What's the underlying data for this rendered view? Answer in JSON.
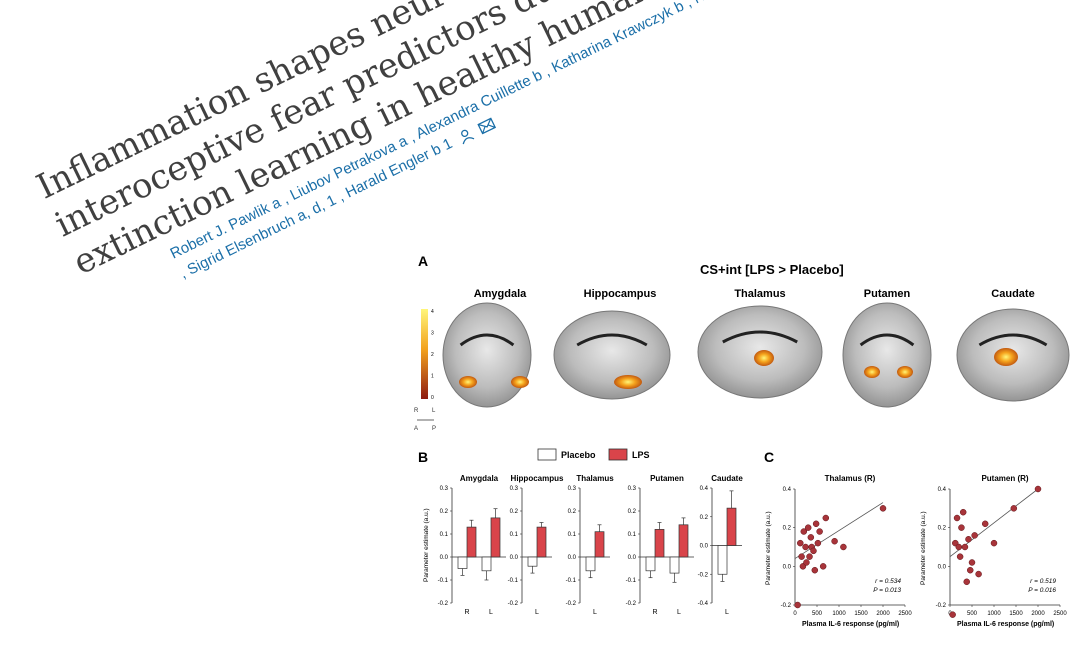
{
  "title": {
    "lines": [
      "Inflammation shapes neural processing of",
      "interoceptive fear predictors during",
      "extinction learning in healthy humans"
    ]
  },
  "authors": {
    "line1": "Robert J. Pawlik a , Liubov Petrakova a , Alexandra Cuillette b , Katharina Krawczyk b , Nina Theysohn c",
    "line2": ", Sigrid Elsenbruch a, d, 1 , Harald Engler b 1",
    "icons": [
      "person-icon",
      "mail-icon"
    ]
  },
  "figure": {
    "panel_a": {
      "letter": "A",
      "heading": "CS+int [LPS > Placebo]",
      "regions": [
        "Amygdala",
        "Hippocampus",
        "Thalamus",
        "Putamen",
        "Caudate"
      ],
      "colorbar_ticks": [
        "4",
        "3",
        "2",
        "1",
        "0"
      ],
      "orientation": {
        "r": "R",
        "l": "L",
        "a": "A",
        "p": "P"
      },
      "colors": {
        "high": "#fff67a",
        "mid": "#f2a11e",
        "low": "#8e1a10"
      }
    },
    "panel_b": {
      "letter": "B",
      "legend": [
        "Placebo",
        "LPS"
      ],
      "ylabel": "Parameter estimate (a.u.)"
    },
    "panel_c": {
      "letter": "C",
      "ylabel": "Parameter estimate (a.u.)",
      "xlabel": "Plasma IL-6 response (pg/ml)"
    }
  },
  "chart_data": [
    {
      "type": "bar",
      "title": "Amygdala",
      "categories": [
        "R",
        "L"
      ],
      "ylim": [
        -0.2,
        0.3
      ],
      "yticks": [
        "0.3",
        "0.2",
        "0.1",
        "0.0",
        "-0.1",
        "-0.2"
      ],
      "series": [
        {
          "name": "Placebo",
          "values": [
            -0.05,
            -0.06
          ],
          "err": [
            0.03,
            0.04
          ]
        },
        {
          "name": "LPS",
          "values": [
            0.13,
            0.17
          ],
          "err": [
            0.03,
            0.04
          ]
        }
      ]
    },
    {
      "type": "bar",
      "title": "Hippocampus",
      "categories": [
        "L"
      ],
      "ylim": [
        -0.2,
        0.3
      ],
      "yticks": [
        "0.3",
        "0.2",
        "0.1",
        "0.0",
        "-0.1",
        "-0.2"
      ],
      "series": [
        {
          "name": "Placebo",
          "values": [
            -0.04
          ],
          "err": [
            0.03
          ]
        },
        {
          "name": "LPS",
          "values": [
            0.13
          ],
          "err": [
            0.02
          ]
        }
      ]
    },
    {
      "type": "bar",
      "title": "Thalamus",
      "categories": [
        "L"
      ],
      "ylim": [
        -0.2,
        0.3
      ],
      "yticks": [
        "0.3",
        "0.2",
        "0.1",
        "0.0",
        "-0.1",
        "-0.2"
      ],
      "series": [
        {
          "name": "Placebo",
          "values": [
            -0.06
          ],
          "err": [
            0.03
          ]
        },
        {
          "name": "LPS",
          "values": [
            0.11
          ],
          "err": [
            0.03
          ]
        }
      ]
    },
    {
      "type": "bar",
      "title": "Putamen",
      "categories": [
        "R",
        "L"
      ],
      "ylim": [
        -0.2,
        0.3
      ],
      "yticks": [
        "0.3",
        "0.2",
        "0.1",
        "0.0",
        "-0.1",
        "-0.2"
      ],
      "series": [
        {
          "name": "Placebo",
          "values": [
            -0.06,
            -0.07
          ],
          "err": [
            0.03,
            0.04
          ]
        },
        {
          "name": "LPS",
          "values": [
            0.12,
            0.14
          ],
          "err": [
            0.03,
            0.03
          ]
        }
      ]
    },
    {
      "type": "bar",
      "title": "Caudate",
      "categories": [
        "L"
      ],
      "ylim": [
        -0.4,
        0.4
      ],
      "yticks": [
        "0.4",
        "0.2",
        "0.0",
        "-0.2",
        "-0.4"
      ],
      "series": [
        {
          "name": "Placebo",
          "values": [
            -0.2
          ],
          "err": [
            0.05
          ]
        },
        {
          "name": "LPS",
          "values": [
            0.26
          ],
          "err": [
            0.12
          ]
        }
      ]
    },
    {
      "type": "scatter",
      "title": "Thalamus (R)",
      "xlim": [
        0,
        2500
      ],
      "ylim": [
        -0.2,
        0.4
      ],
      "xticks": [
        "0",
        "500",
        "1000",
        "1500",
        "2000",
        "2500"
      ],
      "yticks": [
        "0.4",
        "0.2",
        "0.0",
        "-0.2"
      ],
      "x": [
        60,
        120,
        150,
        180,
        200,
        240,
        260,
        300,
        330,
        360,
        380,
        420,
        450,
        480,
        520,
        560,
        640,
        700,
        900,
        1100,
        2000
      ],
      "y": [
        -0.2,
        0.12,
        0.05,
        0.0,
        0.18,
        0.1,
        0.02,
        0.2,
        0.05,
        0.15,
        0.1,
        0.08,
        -0.02,
        0.22,
        0.12,
        0.18,
        0.0,
        0.25,
        0.13,
        0.1,
        0.3
      ],
      "fit": [
        [
          0,
          0.04
        ],
        [
          2000,
          0.33
        ]
      ],
      "stats": [
        "r = 0.534",
        "P = 0.013"
      ]
    },
    {
      "type": "scatter",
      "title": "Putamen (R)",
      "xlim": [
        0,
        2500
      ],
      "ylim": [
        -0.2,
        0.4
      ],
      "xticks": [
        "0",
        "500",
        "1000",
        "1500",
        "2000",
        "2500"
      ],
      "yticks": [
        "0.4",
        "0.2",
        "0.0",
        "-0.2"
      ],
      "x": [
        60,
        120,
        160,
        200,
        230,
        260,
        300,
        340,
        380,
        420,
        460,
        500,
        560,
        650,
        800,
        1000,
        1450,
        2000
      ],
      "y": [
        -0.25,
        0.12,
        0.25,
        0.1,
        0.05,
        0.2,
        0.28,
        0.1,
        -0.08,
        0.14,
        -0.02,
        0.02,
        0.16,
        -0.04,
        0.22,
        0.12,
        0.3,
        0.4
      ],
      "fit": [
        [
          0,
          0.05
        ],
        [
          2000,
          0.4
        ]
      ],
      "stats": [
        "r = 0.519",
        "P = 0.016"
      ]
    }
  ]
}
